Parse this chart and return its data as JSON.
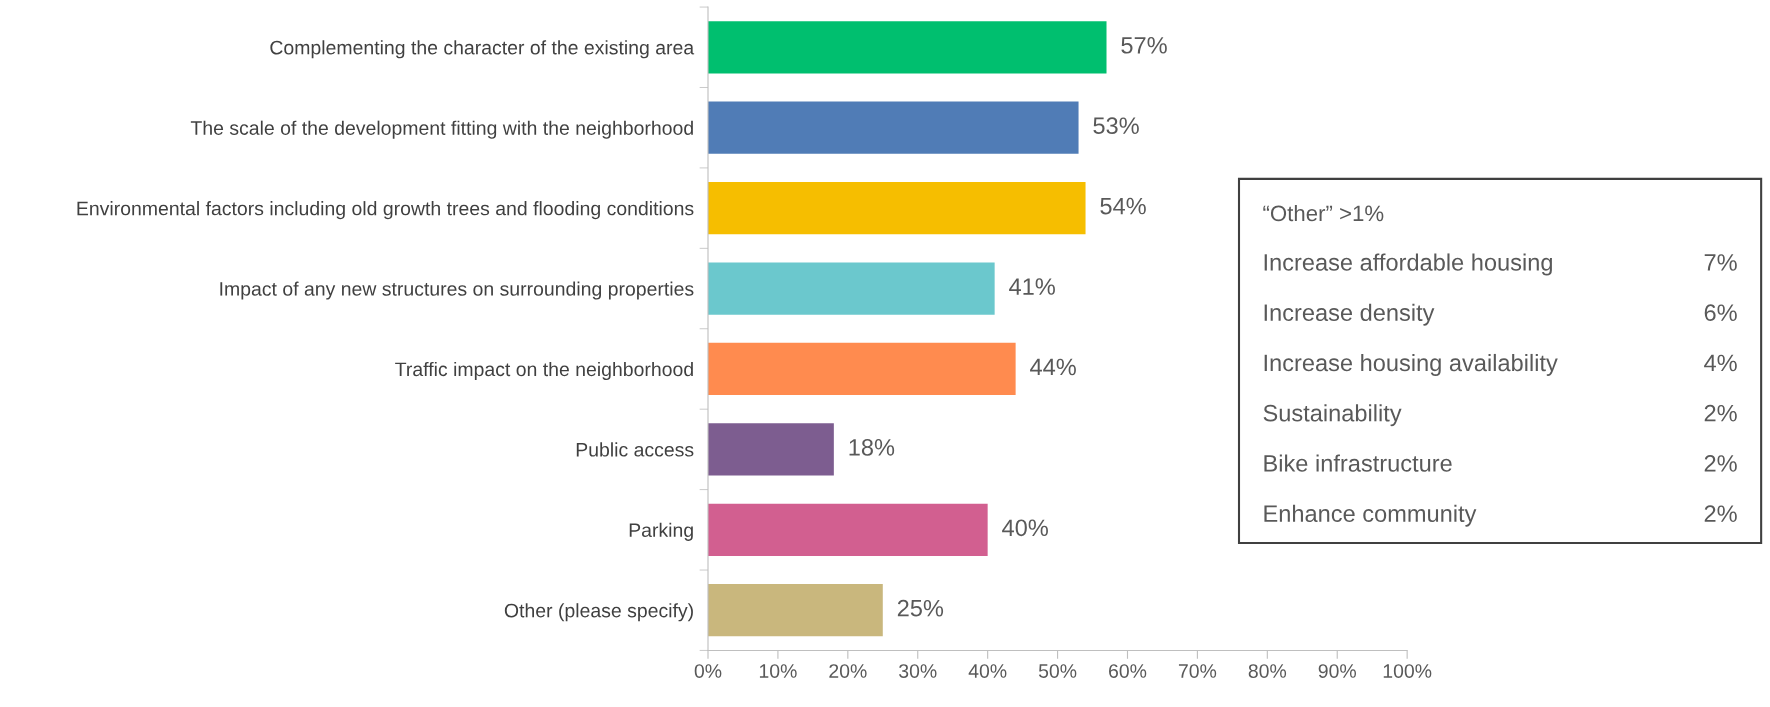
{
  "chart_data": {
    "type": "bar",
    "orientation": "horizontal",
    "categories": [
      "Complementing the character of the existing area",
      "The scale of the development fitting with the neighborhood",
      "Environmental factors including old growth trees and flooding conditions",
      "Impact of any new structures on surrounding properties",
      "Traffic impact on the neighborhood",
      "Public access",
      "Parking",
      "Other (please specify)"
    ],
    "values": [
      57,
      53,
      54,
      41,
      44,
      18,
      40,
      25
    ],
    "colors": [
      "#00bf6f",
      "#507cb6",
      "#f6be00",
      "#6bc8cd",
      "#ff8b4f",
      "#7d5d90",
      "#d25f90",
      "#c9b77d"
    ],
    "value_labels": [
      "57%",
      "53%",
      "54%",
      "41%",
      "44%",
      "18%",
      "40%",
      "25%"
    ],
    "xlim": [
      0,
      100
    ],
    "xticks": [
      {
        "value": 0,
        "label": "0%"
      },
      {
        "value": 10,
        "label": "10%"
      },
      {
        "value": 20,
        "label": "20%"
      },
      {
        "value": 30,
        "label": "30%"
      },
      {
        "value": 40,
        "label": "40%"
      },
      {
        "value": 50,
        "label": "50%"
      },
      {
        "value": 60,
        "label": "60%"
      },
      {
        "value": 70,
        "label": "70%"
      },
      {
        "value": 80,
        "label": "80%"
      },
      {
        "value": 90,
        "label": "90%"
      },
      {
        "value": 100,
        "label": "100%"
      }
    ],
    "grid": false,
    "legend": false,
    "annotations": [
      "“Other” >1%",
      "Increase affordable housing",
      "7%",
      "Increase density",
      "6%",
      "Increase housing availability",
      "4%",
      "Sustainability",
      "2%",
      "Bike infrastructure",
      "2%",
      "Enhance community",
      "2%"
    ]
  }
}
